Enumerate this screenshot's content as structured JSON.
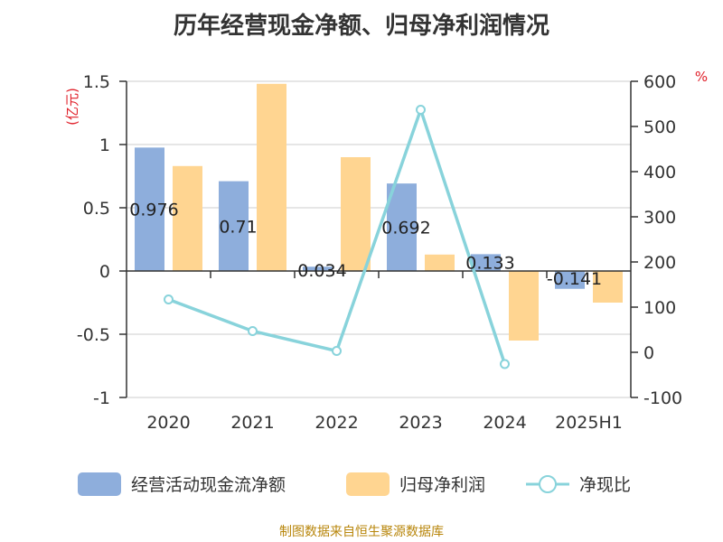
{
  "title": "历年经营现金净额、归母净利润情况",
  "footer": "制图数据来自恒生聚源数据库",
  "chart_data": {
    "type": "bar",
    "categories": [
      "2020",
      "2021",
      "2022",
      "2023",
      "2024",
      "2025H1"
    ],
    "series": [
      {
        "name": "经营活动现金流净额",
        "type": "bar",
        "axis": "left",
        "color": "#8eaedc",
        "values": [
          0.976,
          0.71,
          0.034,
          0.692,
          0.133,
          -0.141
        ],
        "labels": [
          "0.976",
          "0.71",
          "0.034",
          "0.692",
          "0.133",
          "-0.141"
        ]
      },
      {
        "name": "归母净利润",
        "type": "bar",
        "axis": "left",
        "color": "#ffd591",
        "values": [
          0.83,
          1.48,
          0.9,
          0.13,
          -0.55,
          -0.25
        ]
      },
      {
        "name": "净现比",
        "type": "line",
        "axis": "right",
        "color": "#88d3db",
        "values": [
          117,
          47,
          3,
          537,
          -26,
          null
        ]
      }
    ],
    "y_left": {
      "unit": "(亿元)",
      "min": -1,
      "max": 1.5,
      "ticks": [
        "1.5",
        "1",
        "0.5",
        "0",
        "-0.5",
        "-1"
      ]
    },
    "y_right": {
      "unit": "%",
      "min": -100,
      "max": 600,
      "ticks": [
        "600",
        "500",
        "400",
        "300",
        "200",
        "100",
        "0",
        "-100"
      ]
    },
    "grid": true,
    "legend_position": "bottom"
  }
}
